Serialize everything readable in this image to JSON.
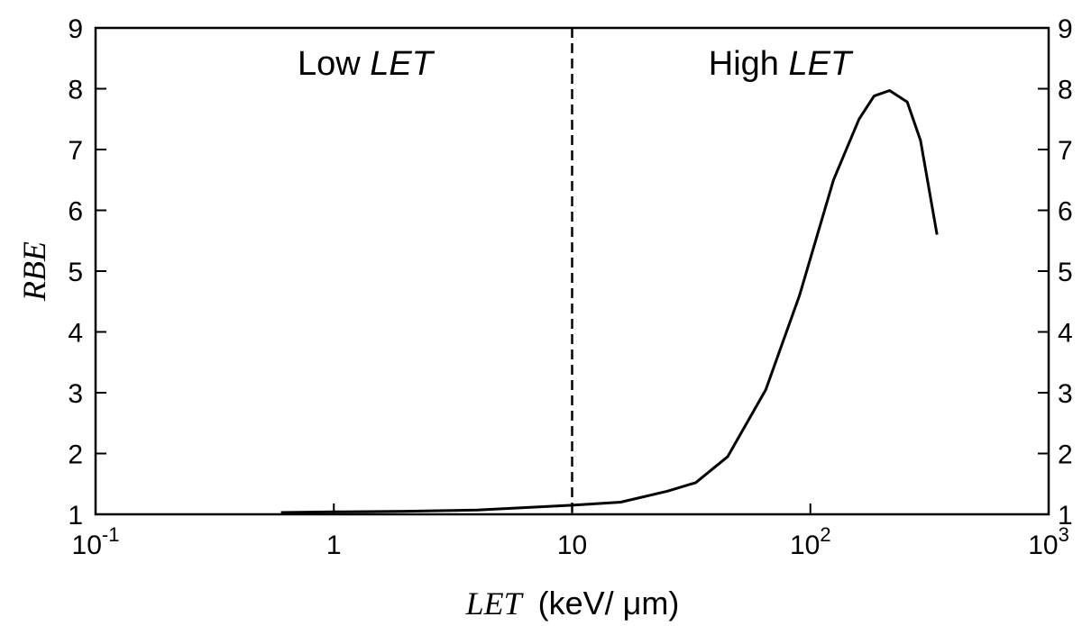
{
  "chart_data": {
    "type": "line",
    "title": "",
    "xscale": "log",
    "xlim": [
      0.1,
      1000
    ],
    "ylim": [
      1,
      9
    ],
    "xlabel_italic": "LET",
    "xlabel_unit": "(keV/ μm)",
    "ylabel": "RBE",
    "x_ticks": [
      {
        "value": 0.1,
        "base": "10",
        "exp": "-1"
      },
      {
        "value": 1,
        "base": "1",
        "exp": ""
      },
      {
        "value": 10,
        "base": "10",
        "exp": ""
      },
      {
        "value": 100,
        "base": "10",
        "exp": "2"
      },
      {
        "value": 1000,
        "base": "10",
        "exp": "3"
      }
    ],
    "y_ticks": [
      1,
      2,
      3,
      4,
      5,
      6,
      7,
      8,
      9
    ],
    "regions": {
      "low": {
        "text": "Low ",
        "italic": "LET"
      },
      "high": {
        "text": "High ",
        "italic": "LET"
      },
      "divider_x": 10
    },
    "series": [
      {
        "x": [
          0.6,
          1,
          2,
          4,
          10,
          16,
          25,
          33,
          45,
          65,
          90,
          125,
          160,
          185,
          215,
          255,
          290,
          340
        ],
        "y": [
          1.03,
          1.04,
          1.05,
          1.07,
          1.15,
          1.2,
          1.38,
          1.52,
          1.95,
          3.05,
          4.6,
          6.5,
          7.5,
          7.88,
          7.97,
          7.78,
          7.15,
          5.6
        ]
      }
    ],
    "grid": false,
    "legend": "none"
  }
}
